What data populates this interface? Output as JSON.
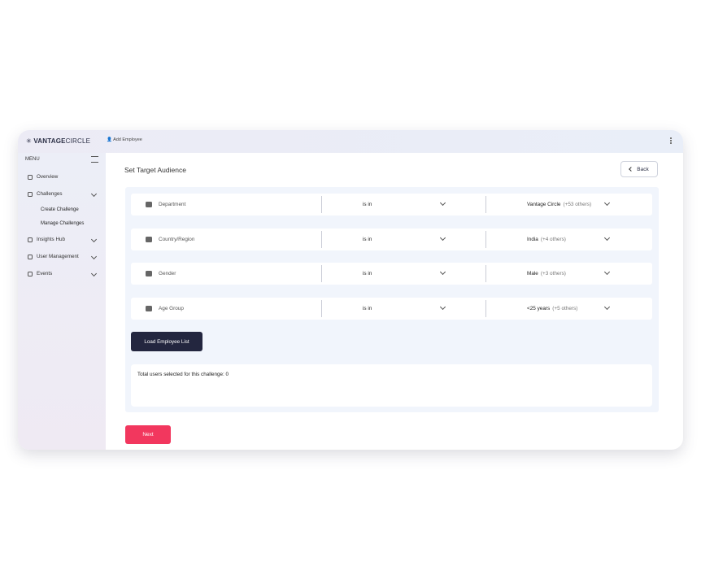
{
  "header": {
    "brand_bold": "VANTAGE",
    "brand_light": "CIRCLE",
    "action": "Add Employee"
  },
  "sidebar": {
    "heading": "MENU",
    "items": [
      "Overview",
      "Challenges",
      "Create Challenge",
      "Manage Challenges",
      "Insights Hub",
      "User Management",
      "Events"
    ]
  },
  "main": {
    "title": "Set Target Audience",
    "back": "Back",
    "filters": [
      {
        "field": "Department",
        "operator": "is in",
        "value": "Vantage Circle",
        "extra": "(+53 others)"
      },
      {
        "field": "Country/Region",
        "operator": "is in",
        "value": "India",
        "extra": "(+4 others)"
      },
      {
        "field": "Gender",
        "operator": "is in",
        "value": "Male",
        "extra": "(+3 others)"
      },
      {
        "field": "Age Group",
        "operator": "is in",
        "value": "<25 years",
        "extra": "(+5 others)"
      }
    ],
    "load_button": "Load Employee List",
    "total": "Total users selected for this challenge: 0",
    "next_button": "Next"
  }
}
